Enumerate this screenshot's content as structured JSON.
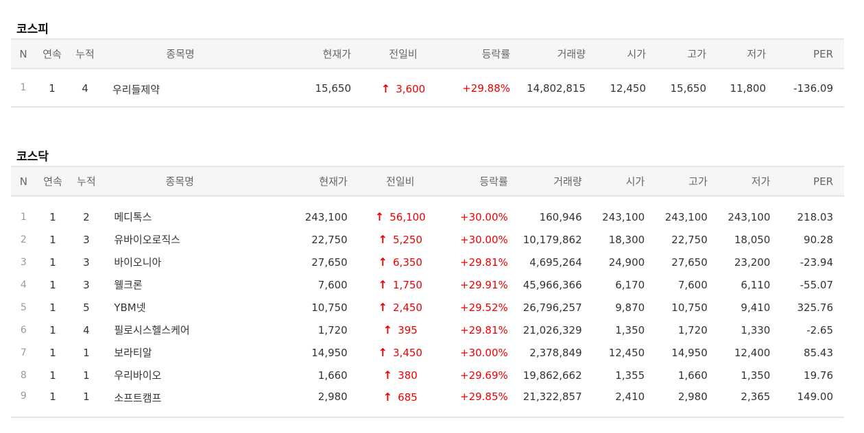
{
  "kospi": {
    "title": "코스피",
    "headers": [
      "N",
      "연속",
      "누적",
      "종목명",
      "현재가",
      "전일비",
      "등락률",
      "거래량",
      "시가",
      "고가",
      "저가",
      "PER"
    ],
    "rows": [
      {
        "n": "1",
        "streak": "1",
        "cumulative": "4",
        "name": "우리들제약",
        "price": "15,650",
        "arrow": "↑",
        "change": "3,600",
        "rate": "+29.88%",
        "volume": "14,802,815",
        "open": "12,450",
        "high": "15,650",
        "low": "11,800",
        "per": "-136.09"
      }
    ]
  },
  "kosdaq": {
    "title": "코스닥",
    "headers": [
      "N",
      "연속",
      "누적",
      "종목명",
      "현재가",
      "전일비",
      "등락률",
      "거래량",
      "시가",
      "고가",
      "저가",
      "PER"
    ],
    "rows": [
      {
        "n": "1",
        "streak": "1",
        "cumulative": "2",
        "name": "메디톡스",
        "price": "243,100",
        "arrow": "↑",
        "change": "56,100",
        "rate": "+30.00%",
        "volume": "160,946",
        "open": "243,100",
        "high": "243,100",
        "low": "243,100",
        "per": "218.03"
      },
      {
        "n": "2",
        "streak": "1",
        "cumulative": "3",
        "name": "유바이오로직스",
        "price": "22,750",
        "arrow": "↑",
        "change": "5,250",
        "rate": "+30.00%",
        "volume": "10,179,862",
        "open": "18,300",
        "high": "22,750",
        "low": "18,050",
        "per": "90.28"
      },
      {
        "n": "3",
        "streak": "1",
        "cumulative": "3",
        "name": "바이오니아",
        "price": "27,650",
        "arrow": "↑",
        "change": "6,350",
        "rate": "+29.81%",
        "volume": "4,695,264",
        "open": "24,900",
        "high": "27,650",
        "low": "23,200",
        "per": "-23.94"
      },
      {
        "n": "4",
        "streak": "1",
        "cumulative": "3",
        "name": "웰크론",
        "price": "7,600",
        "arrow": "↑",
        "change": "1,750",
        "rate": "+29.91%",
        "volume": "45,966,366",
        "open": "6,170",
        "high": "7,600",
        "low": "6,110",
        "per": "-55.07"
      },
      {
        "n": "5",
        "streak": "1",
        "cumulative": "5",
        "name": "YBM넷",
        "price": "10,750",
        "arrow": "↑",
        "change": "2,450",
        "rate": "+29.52%",
        "volume": "26,796,257",
        "open": "9,870",
        "high": "10,750",
        "low": "9,410",
        "per": "325.76"
      },
      {
        "n": "6",
        "streak": "1",
        "cumulative": "4",
        "name": "필로시스헬스케어",
        "price": "1,720",
        "arrow": "↑",
        "change": "395",
        "rate": "+29.81%",
        "volume": "21,026,329",
        "open": "1,350",
        "high": "1,720",
        "low": "1,330",
        "per": "-2.65"
      },
      {
        "n": "7",
        "streak": "1",
        "cumulative": "1",
        "name": "보라티알",
        "price": "14,950",
        "arrow": "↑",
        "change": "3,450",
        "rate": "+30.00%",
        "volume": "2,378,849",
        "open": "12,450",
        "high": "14,950",
        "low": "12,400",
        "per": "85.43"
      },
      {
        "n": "8",
        "streak": "1",
        "cumulative": "1",
        "name": "우리바이오",
        "price": "1,660",
        "arrow": "↑",
        "change": "380",
        "rate": "+29.69%",
        "volume": "19,862,662",
        "open": "1,355",
        "high": "1,660",
        "low": "1,350",
        "per": "19.76"
      },
      {
        "n": "9",
        "streak": "1",
        "cumulative": "1",
        "name": "소프트캠프",
        "price": "2,980",
        "arrow": "↑",
        "change": "685",
        "rate": "+29.85%",
        "volume": "21,322,857",
        "open": "2,410",
        "high": "2,980",
        "low": "2,365",
        "per": "149.00"
      }
    ]
  },
  "colors": {
    "up": "#e00000",
    "header_bg": "#f6f6f6",
    "border": "#e5e5e5"
  }
}
